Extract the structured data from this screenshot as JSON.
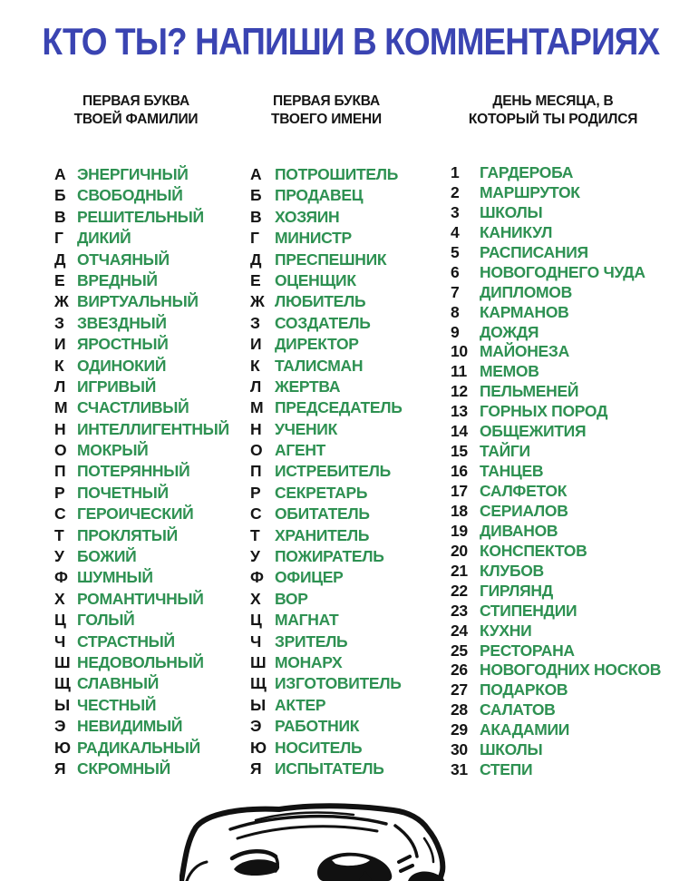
{
  "title": "КТО ТЫ? НАПИШИ В КОММЕНТАРИЯХ",
  "colors": {
    "title_blue": "#3a44b2",
    "item_green": "#2e9152",
    "text_black": "#151515"
  },
  "columns": [
    {
      "id": "surname-letter",
      "header_line1": "ПЕРВАЯ БУКВА",
      "header_line2": "ТВОЕЙ ФАМИЛИИ",
      "items": [
        {
          "key": "А",
          "value": "ЭНЕРГИЧНЫЙ"
        },
        {
          "key": "Б",
          "value": "СВОБОДНЫЙ"
        },
        {
          "key": "В",
          "value": "РЕШИТЕЛЬНЫЙ"
        },
        {
          "key": "Г",
          "value": "ДИКИЙ"
        },
        {
          "key": "Д",
          "value": "ОТЧАЯНЫЙ"
        },
        {
          "key": "Е",
          "value": "ВРЕДНЫЙ"
        },
        {
          "key": "Ж",
          "value": "ВИРТУАЛЬНЫЙ"
        },
        {
          "key": "З",
          "value": "ЗВЕЗДНЫЙ"
        },
        {
          "key": "И",
          "value": "ЯРОСТНЫЙ"
        },
        {
          "key": "К",
          "value": "ОДИНОКИЙ"
        },
        {
          "key": "Л",
          "value": "ИГРИВЫЙ"
        },
        {
          "key": "М",
          "value": "СЧАСТЛИВЫЙ"
        },
        {
          "key": "Н",
          "value": "ИНТЕЛЛИГЕНТНЫЙ"
        },
        {
          "key": "О",
          "value": "МОКРЫЙ"
        },
        {
          "key": "П",
          "value": "ПОТЕРЯННЫЙ"
        },
        {
          "key": "Р",
          "value": "ПОЧЕТНЫЙ"
        },
        {
          "key": "С",
          "value": "ГЕРОИЧЕСКИЙ"
        },
        {
          "key": "Т",
          "value": "ПРОКЛЯТЫЙ"
        },
        {
          "key": "У",
          "value": "БОЖИЙ"
        },
        {
          "key": "Ф",
          "value": "ШУМНЫЙ"
        },
        {
          "key": "Х",
          "value": "РОМАНТИЧНЫЙ"
        },
        {
          "key": "Ц",
          "value": "ГОЛЫЙ"
        },
        {
          "key": "Ч",
          "value": "СТРАСТНЫЙ"
        },
        {
          "key": "Ш",
          "value": "НЕДОВОЛЬНЫЙ"
        },
        {
          "key": "Щ",
          "value": "СЛАВНЫЙ"
        },
        {
          "key": "Ы",
          "value": "ЧЕСТНЫЙ"
        },
        {
          "key": "Э",
          "value": "НЕВИДИМЫЙ"
        },
        {
          "key": "Ю",
          "value": "РАДИКАЛЬНЫЙ"
        },
        {
          "key": "Я",
          "value": "СКРОМНЫЙ"
        }
      ]
    },
    {
      "id": "name-letter",
      "header_line1": "ПЕРВАЯ БУКВА",
      "header_line2": "ТВОЕГО ИМЕНИ",
      "items": [
        {
          "key": "А",
          "value": "ПОТРОШИТЕЛЬ"
        },
        {
          "key": "Б",
          "value": "ПРОДАВЕЦ"
        },
        {
          "key": "В",
          "value": "ХОЗЯИН"
        },
        {
          "key": "Г",
          "value": "МИНИСТР"
        },
        {
          "key": "Д",
          "value": "ПРЕСПЕШНИК"
        },
        {
          "key": "Е",
          "value": "ОЦЕНЩИК"
        },
        {
          "key": "Ж",
          "value": "ЛЮБИТЕЛЬ"
        },
        {
          "key": "З",
          "value": "СОЗДАТЕЛЬ"
        },
        {
          "key": "И",
          "value": "ДИРЕКТОР"
        },
        {
          "key": "К",
          "value": "ТАЛИСМАН"
        },
        {
          "key": "Л",
          "value": "ЖЕРТВА"
        },
        {
          "key": "М",
          "value": "ПРЕДСЕДАТЕЛЬ"
        },
        {
          "key": "Н",
          "value": "УЧЕНИК"
        },
        {
          "key": "О",
          "value": "АГЕНТ"
        },
        {
          "key": "П",
          "value": "ИСТРЕБИТЕЛЬ"
        },
        {
          "key": "Р",
          "value": "СЕКРЕТАРЬ"
        },
        {
          "key": "С",
          "value": "ОБИТАТЕЛЬ"
        },
        {
          "key": "Т",
          "value": "ХРАНИТЕЛЬ"
        },
        {
          "key": "У",
          "value": "ПОЖИРАТЕЛЬ"
        },
        {
          "key": "Ф",
          "value": "ОФИЦЕР"
        },
        {
          "key": "Х",
          "value": "ВОР"
        },
        {
          "key": "Ц",
          "value": "МАГНАТ"
        },
        {
          "key": "Ч",
          "value": "ЗРИТЕЛЬ"
        },
        {
          "key": "Ш",
          "value": "МОНАРХ"
        },
        {
          "key": "Щ",
          "value": "ИЗГОТОВИТЕЛЬ"
        },
        {
          "key": "Ы",
          "value": "АКТЕР"
        },
        {
          "key": "Э",
          "value": "РАБОТНИК"
        },
        {
          "key": "Ю",
          "value": "НОСИТЕЛЬ"
        },
        {
          "key": "Я",
          "value": "ИСПЫТАТЕЛЬ"
        }
      ]
    },
    {
      "id": "birth-day",
      "header_line1": "ДЕНЬ МЕСЯЦА, В",
      "header_line2": "КОТОРЫЙ ТЫ РОДИЛСЯ",
      "items": [
        {
          "key": "1",
          "value": "ГАРДЕРОБА"
        },
        {
          "key": "2",
          "value": "МАРШРУТОК"
        },
        {
          "key": "3",
          "value": "ШКОЛЫ"
        },
        {
          "key": "4",
          "value": "КАНИКУЛ"
        },
        {
          "key": "5",
          "value": "РАСПИСАНИЯ"
        },
        {
          "key": "6",
          "value": "НОВОГОДНЕГО ЧУДА"
        },
        {
          "key": "7",
          "value": "ДИПЛОМОВ"
        },
        {
          "key": "8",
          "value": "КАРМАНОВ"
        },
        {
          "key": "9",
          "value": "ДОЖДЯ"
        },
        {
          "key": "10",
          "value": "МАЙОНЕЗА"
        },
        {
          "key": "11",
          "value": "МЕМОВ"
        },
        {
          "key": "12",
          "value": "ПЕЛЬМЕНЕЙ"
        },
        {
          "key": "13",
          "value": "ГОРНЫХ ПОРОД"
        },
        {
          "key": "14",
          "value": "ОБЩЕЖИТИЯ"
        },
        {
          "key": "15",
          "value": "ТАЙГИ"
        },
        {
          "key": "16",
          "value": "ТАНЦЕВ"
        },
        {
          "key": "17",
          "value": "САЛФЕТОК"
        },
        {
          "key": "18",
          "value": "СЕРИАЛОВ"
        },
        {
          "key": "19",
          "value": "ДИВАНОВ"
        },
        {
          "key": "20",
          "value": "КОНСПЕКТОВ"
        },
        {
          "key": "21",
          "value": "КЛУБОВ"
        },
        {
          "key": "22",
          "value": "ГИРЛЯНД"
        },
        {
          "key": "23",
          "value": "СТИПЕНДИИ"
        },
        {
          "key": "24",
          "value": "КУХНИ"
        },
        {
          "key": "25",
          "value": "РЕСТОРАНА"
        },
        {
          "key": "26",
          "value": "НОВОГОДНИХ НОСКОВ"
        },
        {
          "key": "27",
          "value": "ПОДАРКОВ"
        },
        {
          "key": "28",
          "value": "САЛАТОВ"
        },
        {
          "key": "29",
          "value": "АКАДАМИИ"
        },
        {
          "key": "30",
          "value": "ШКОЛЫ"
        },
        {
          "key": "31",
          "value": "СТЕПИ"
        }
      ]
    }
  ],
  "footer_image": "trollface"
}
